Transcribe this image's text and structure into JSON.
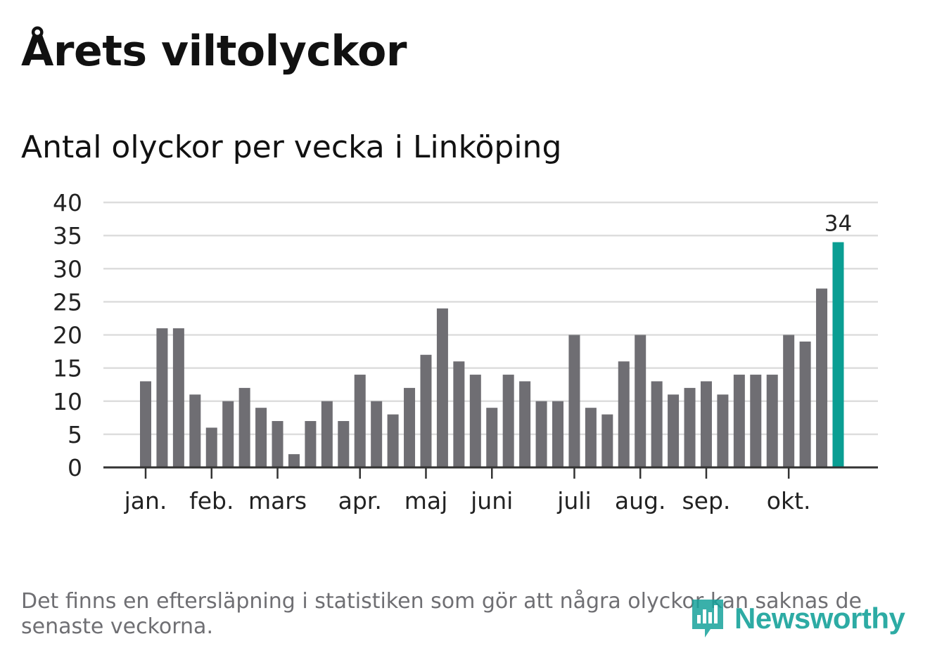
{
  "chart_data": {
    "type": "bar",
    "title": "Årets viltolyckor",
    "subtitle": "Antal olyckor per vecka i Linköping",
    "xlabel": "",
    "ylabel": "",
    "ylim": [
      0,
      40
    ],
    "yticks": [
      "0",
      "5",
      "10",
      "15",
      "20",
      "25",
      "30",
      "35",
      "40"
    ],
    "grid": true,
    "values": [
      13,
      21,
      21,
      11,
      6,
      10,
      12,
      9,
      7,
      2,
      7,
      10,
      7,
      14,
      10,
      8,
      12,
      17,
      24,
      16,
      14,
      9,
      14,
      13,
      10,
      10,
      20,
      9,
      8,
      16,
      20,
      13,
      11,
      12,
      13,
      11,
      14,
      14,
      14,
      20,
      19,
      27,
      34
    ],
    "month_labels": [
      {
        "label": "jan.",
        "index": 0
      },
      {
        "label": "feb.",
        "index": 4
      },
      {
        "label": "mars",
        "index": 8
      },
      {
        "label": "apr.",
        "index": 13
      },
      {
        "label": "maj",
        "index": 17
      },
      {
        "label": "juni",
        "index": 21
      },
      {
        "label": "juli",
        "index": 26
      },
      {
        "label": "aug.",
        "index": 30
      },
      {
        "label": "sep.",
        "index": 34
      },
      {
        "label": "okt.",
        "index": 39
      }
    ],
    "highlight_index": 42,
    "highlight_label": "34",
    "colors": {
      "bar": "#6f6e73",
      "highlight": "#0a9e93",
      "grid": "#dddddd",
      "axis": "#333333",
      "tick_text": "#222222"
    }
  },
  "footnote": "Det finns en eftersläpning i statistiken som gör att några olyckor kan saknas de senaste veckorna.",
  "logo": {
    "text": "Newsworthy",
    "icon": "newsworthy-logo-icon",
    "color": "#17a29b"
  }
}
